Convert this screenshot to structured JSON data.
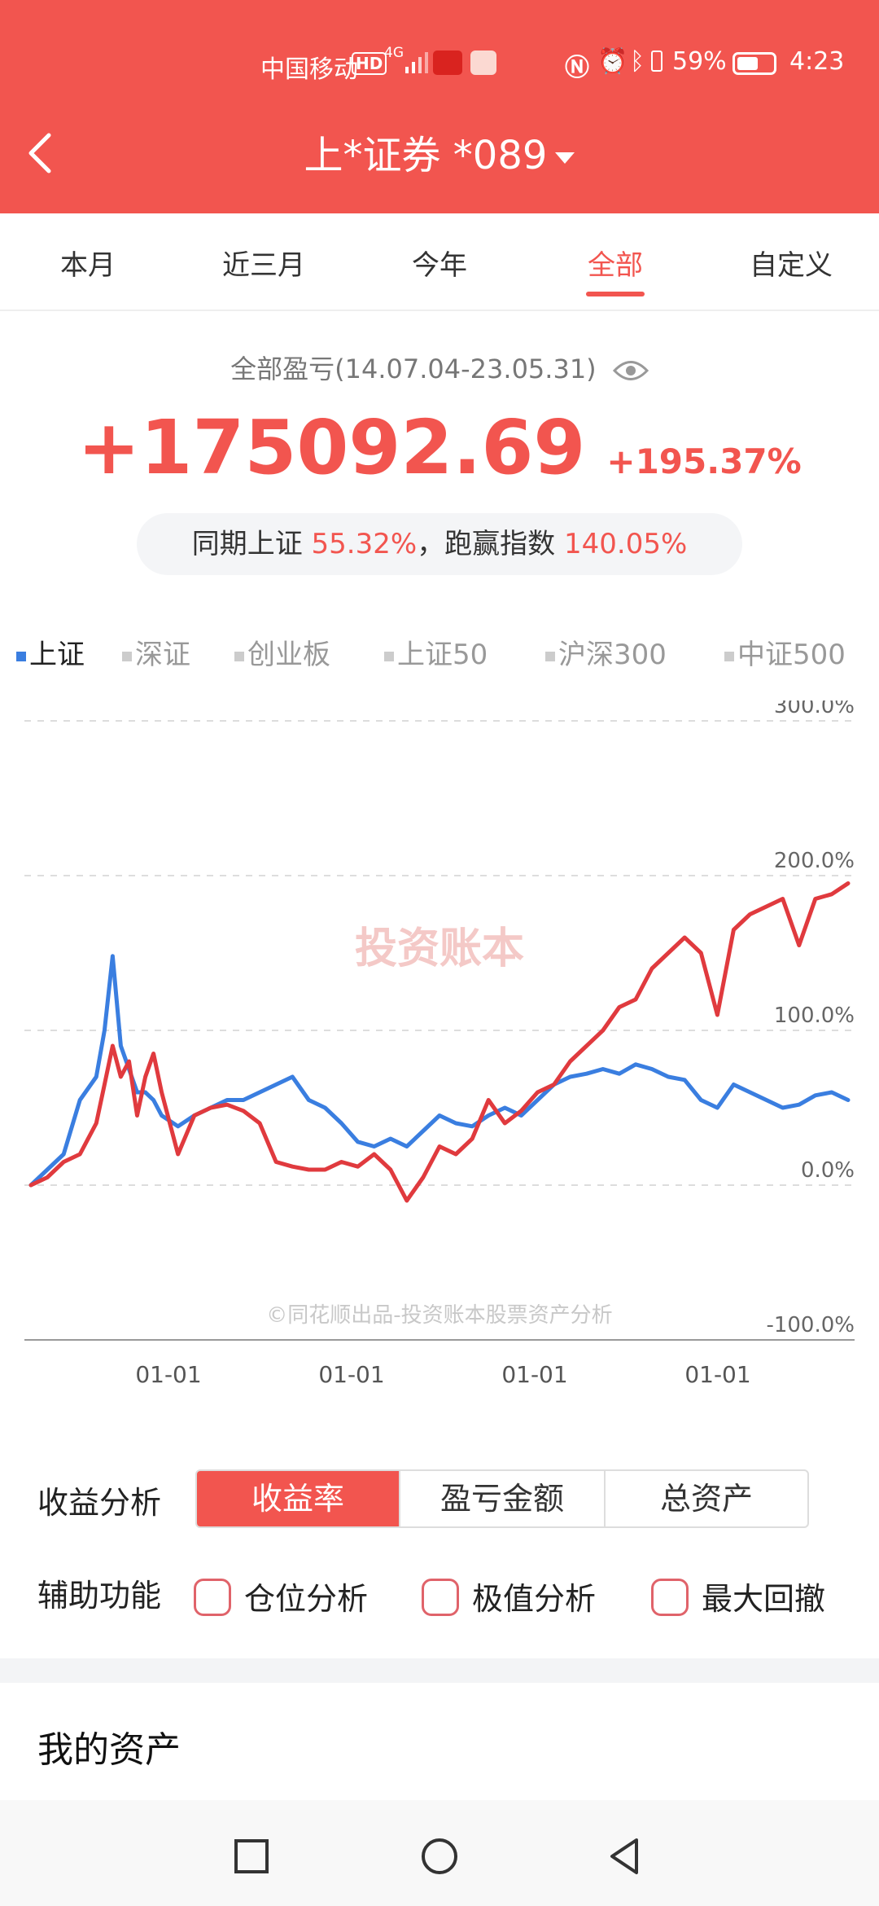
{
  "status_bar": {
    "carrier": "中国移动",
    "hd": "HD",
    "network": "4G",
    "battery": "59%",
    "battery_level": 0.59,
    "time": "4:23"
  },
  "header": {
    "title": "上*证券 *089",
    "back_icon": "chevron-left-icon",
    "dropdown_icon": "caret-down-icon"
  },
  "tabs": [
    {
      "label": "本月",
      "active": false
    },
    {
      "label": "近三月",
      "active": false
    },
    {
      "label": "今年",
      "active": false
    },
    {
      "label": "全部",
      "active": true
    },
    {
      "label": "自定义",
      "active": false
    }
  ],
  "summary": {
    "label": "全部盈亏(14.07.04-23.05.31)",
    "pnl": "+175092.69",
    "pnl_pct": "+195.37%",
    "compare_prefix": "同期上证",
    "compare_value": "55.32%",
    "compare_mid": "，跑赢指数",
    "compare_beat": "140.05%"
  },
  "index_legend": [
    {
      "label": "上证",
      "active": true
    },
    {
      "label": "深证",
      "active": false
    },
    {
      "label": "创业板",
      "active": false
    },
    {
      "label": "上证50",
      "active": false
    },
    {
      "label": "沪深300",
      "active": false
    },
    {
      "label": "中证500",
      "active": false
    }
  ],
  "chart_data": {
    "type": "line",
    "watermark": "投资账本",
    "footer_text": "©同花顺出品-投资账本股票资产分析",
    "ylim": [
      -100,
      300
    ],
    "yticks": [
      "300.0%",
      "200.0%",
      "100.0%",
      "0.0%",
      "-100.0%"
    ],
    "xticks": [
      "01-01",
      "01-01",
      "01-01",
      "01-01"
    ],
    "grid": true,
    "colors": {
      "account": "#e03a3e",
      "index": "#3a7ee0"
    },
    "series": [
      {
        "name": "",
        "color": "#e03a3e",
        "x": [
          0,
          0.02,
          0.04,
          0.06,
          0.08,
          0.09,
          0.1,
          0.11,
          0.12,
          0.13,
          0.14,
          0.15,
          0.16,
          0.18,
          0.2,
          0.22,
          0.24,
          0.26,
          0.28,
          0.3,
          0.32,
          0.34,
          0.36,
          0.38,
          0.4,
          0.42,
          0.44,
          0.46,
          0.48,
          0.5,
          0.52,
          0.54,
          0.56,
          0.58,
          0.6,
          0.62,
          0.64,
          0.66,
          0.68,
          0.7,
          0.72,
          0.74,
          0.76,
          0.78,
          0.8,
          0.82,
          0.84,
          0.86,
          0.88,
          0.9,
          0.92,
          0.94,
          0.96,
          0.98,
          1.0
        ],
        "values": [
          0,
          5,
          15,
          20,
          40,
          65,
          90,
          70,
          80,
          45,
          70,
          85,
          60,
          20,
          45,
          50,
          52,
          48,
          40,
          15,
          12,
          10,
          10,
          15,
          12,
          20,
          10,
          -10,
          5,
          25,
          20,
          30,
          55,
          40,
          48,
          60,
          65,
          80,
          90,
          100,
          115,
          120,
          140,
          150,
          160,
          150,
          110,
          165,
          175,
          180,
          185,
          155,
          185,
          188,
          195
        ]
      },
      {
        "name": "",
        "color": "#3a7ee0",
        "x": [
          0,
          0.02,
          0.04,
          0.06,
          0.08,
          0.09,
          0.1,
          0.11,
          0.12,
          0.13,
          0.14,
          0.15,
          0.16,
          0.18,
          0.2,
          0.22,
          0.24,
          0.26,
          0.28,
          0.3,
          0.32,
          0.34,
          0.36,
          0.38,
          0.4,
          0.42,
          0.44,
          0.46,
          0.48,
          0.5,
          0.52,
          0.54,
          0.56,
          0.58,
          0.6,
          0.62,
          0.64,
          0.66,
          0.68,
          0.7,
          0.72,
          0.74,
          0.76,
          0.78,
          0.8,
          0.82,
          0.84,
          0.86,
          0.88,
          0.9,
          0.92,
          0.94,
          0.96,
          0.98,
          1.0
        ],
        "values": [
          0,
          10,
          20,
          55,
          70,
          100,
          148,
          90,
          75,
          60,
          60,
          55,
          45,
          38,
          45,
          50,
          55,
          55,
          60,
          65,
          70,
          55,
          50,
          40,
          28,
          25,
          30,
          25,
          35,
          45,
          40,
          38,
          45,
          50,
          45,
          55,
          65,
          70,
          72,
          75,
          72,
          78,
          75,
          70,
          68,
          55,
          50,
          65,
          60,
          55,
          50,
          52,
          58,
          60,
          55
        ]
      }
    ]
  },
  "analysis": {
    "label": "收益分析",
    "options": [
      {
        "label": "收益率",
        "active": true
      },
      {
        "label": "盈亏金额",
        "active": false
      },
      {
        "label": "总资产",
        "active": false
      }
    ]
  },
  "aux": {
    "label": "辅助功能",
    "items": [
      {
        "label": "仓位分析",
        "checked": false
      },
      {
        "label": "极值分析",
        "checked": false
      },
      {
        "label": "最大回撤",
        "checked": false
      }
    ]
  },
  "my_assets": {
    "title": "我的资产"
  },
  "nav": {
    "icons": [
      "recent-apps-icon",
      "home-icon",
      "back-triangle-icon"
    ]
  }
}
